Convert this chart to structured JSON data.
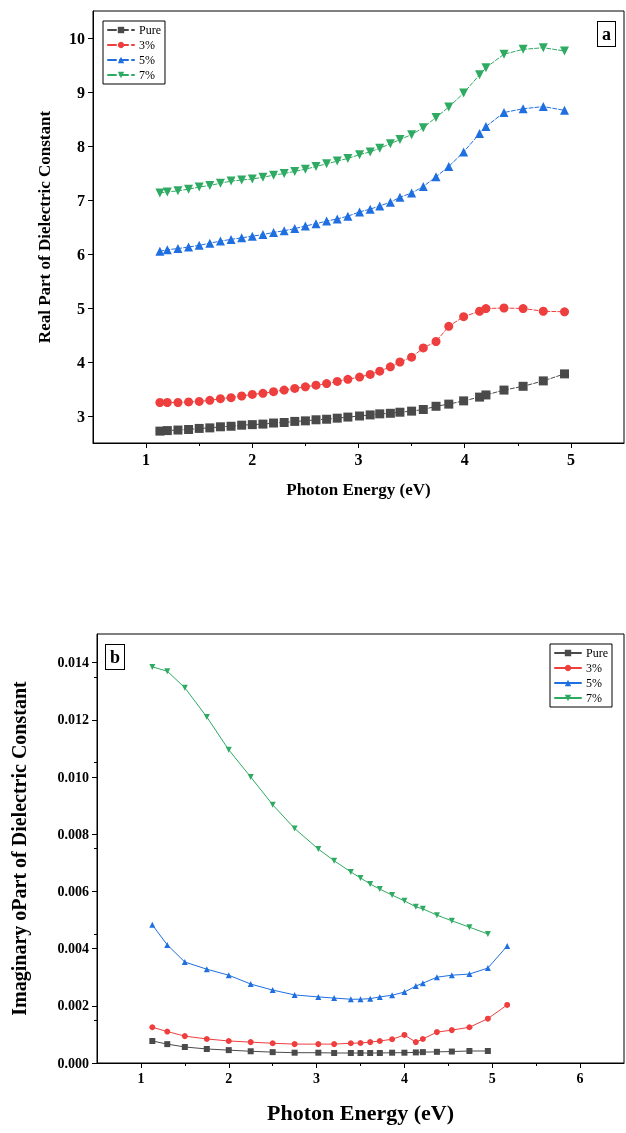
{
  "chart_data": [
    {
      "type": "line",
      "xlabel": "Photon Energy (eV)",
      "ylabel": "Real Part of Dielectric Constant",
      "annotations": [
        "a"
      ],
      "x": [
        1.13,
        1.2,
        1.3,
        1.4,
        1.5,
        1.6,
        1.7,
        1.8,
        1.9,
        2.0,
        2.1,
        2.2,
        2.3,
        2.4,
        2.5,
        2.6,
        2.7,
        2.8,
        2.9,
        3.01,
        3.11,
        3.2,
        3.3,
        3.39,
        3.5,
        3.61,
        3.73,
        3.85,
        3.99,
        4.14,
        4.2,
        4.37,
        4.55,
        4.74,
        4.94
      ],
      "series": [
        {
          "name": "Pure",
          "color": "#4a4a4a",
          "marker": "square",
          "values": [
            2.72,
            2.73,
            2.74,
            2.75,
            2.77,
            2.78,
            2.8,
            2.81,
            2.83,
            2.84,
            2.85,
            2.87,
            2.88,
            2.9,
            2.91,
            2.93,
            2.94,
            2.96,
            2.98,
            3.0,
            3.02,
            3.04,
            3.05,
            3.07,
            3.09,
            3.12,
            3.18,
            3.22,
            3.28,
            3.35,
            3.39,
            3.48,
            3.55,
            3.65,
            3.78
          ]
        },
        {
          "name": "3%",
          "color": "#ee3e3e",
          "marker": "circle",
          "values": [
            3.25,
            3.25,
            3.25,
            3.26,
            3.27,
            3.29,
            3.32,
            3.34,
            3.37,
            3.4,
            3.42,
            3.45,
            3.48,
            3.51,
            3.54,
            3.57,
            3.6,
            3.64,
            3.68,
            3.72,
            3.77,
            3.83,
            3.91,
            4.0,
            4.09,
            4.26,
            4.38,
            4.66,
            4.84,
            4.94,
            4.99,
            5.0,
            4.99,
            4.94,
            4.93
          ]
        },
        {
          "name": "5%",
          "color": "#1f6fe0",
          "marker": "triangle",
          "values": [
            6.05,
            6.08,
            6.1,
            6.13,
            6.16,
            6.2,
            6.24,
            6.27,
            6.3,
            6.33,
            6.36,
            6.4,
            6.43,
            6.47,
            6.52,
            6.56,
            6.61,
            6.65,
            6.7,
            6.78,
            6.83,
            6.89,
            6.96,
            7.05,
            7.13,
            7.25,
            7.43,
            7.62,
            7.89,
            8.23,
            8.36,
            8.62,
            8.69,
            8.73,
            8.66
          ]
        },
        {
          "name": "7%",
          "color": "#2eaa62",
          "marker": "triangle-down",
          "values": [
            7.13,
            7.15,
            7.17,
            7.2,
            7.24,
            7.27,
            7.31,
            7.35,
            7.37,
            7.39,
            7.42,
            7.46,
            7.49,
            7.53,
            7.57,
            7.62,
            7.67,
            7.72,
            7.77,
            7.84,
            7.89,
            7.96,
            8.04,
            8.12,
            8.21,
            8.34,
            8.53,
            8.72,
            8.98,
            9.32,
            9.45,
            9.7,
            9.79,
            9.82,
            9.76
          ]
        }
      ],
      "xlim": [
        0.5,
        5.5
      ],
      "xticks": [
        1,
        2,
        3,
        4,
        5
      ],
      "ylim": [
        2.5,
        10.5
      ],
      "yticks": [
        3,
        4,
        5,
        6,
        7,
        8,
        9,
        10
      ],
      "grid": false,
      "legend": "top left",
      "line_style": "dashed"
    },
    {
      "type": "line",
      "xlabel": "Photon Energy (eV)",
      "ylabel": "Imaginary oPart of Dielectric Constant",
      "annotations": [
        "b"
      ],
      "x": [
        1.13,
        1.3,
        1.5,
        1.75,
        2.0,
        2.25,
        2.5,
        2.75,
        3.02,
        3.2,
        3.39,
        3.5,
        3.61,
        3.72,
        3.86,
        4.0,
        4.13,
        4.21,
        4.37,
        4.54,
        4.74,
        4.95,
        5.17
      ],
      "series": [
        {
          "name": "Pure",
          "color": "#4a4a4a",
          "marker": "square",
          "values": [
            0.00077,
            0.00066,
            0.00056,
            0.00049,
            0.00045,
            0.00041,
            0.00038,
            0.00036,
            0.00036,
            0.00035,
            0.00035,
            0.00035,
            0.00035,
            0.00035,
            0.00036,
            0.00036,
            0.00037,
            0.00038,
            0.00039,
            0.0004,
            0.00042,
            0.00042,
            null
          ]
        },
        {
          "name": "3%",
          "color": "#ee3e3e",
          "marker": "circle",
          "values": [
            0.00125,
            0.0011,
            0.00094,
            0.00084,
            0.00077,
            0.00073,
            0.00069,
            0.00066,
            0.00066,
            0.00066,
            0.00069,
            0.0007,
            0.00073,
            0.00077,
            0.00083,
            0.00098,
            0.00073,
            0.00084,
            0.00108,
            0.00115,
            0.00125,
            0.00155,
            0.00203
          ]
        },
        {
          "name": "5%",
          "color": "#1f6fe0",
          "marker": "triangle",
          "values": [
            0.00483,
            0.00413,
            0.00353,
            0.00328,
            0.00307,
            0.00276,
            0.00255,
            0.00238,
            0.00231,
            0.00227,
            0.00223,
            0.00223,
            0.00225,
            0.00231,
            0.00237,
            0.00248,
            0.00269,
            0.00279,
            0.003,
            0.00307,
            0.00311,
            0.00332,
            0.00409
          ]
        },
        {
          "name": "7%",
          "color": "#2eaa62",
          "marker": "triangle-down",
          "values": [
            0.01385,
            0.0137,
            0.01312,
            0.0121,
            0.01095,
            0.01,
            0.00903,
            0.0082,
            0.00748,
            0.00707,
            0.00668,
            0.00647,
            0.00626,
            0.00608,
            0.00587,
            0.00567,
            0.00546,
            0.00539,
            0.00517,
            0.00497,
            0.00475,
            0.00451,
            null
          ]
        }
      ],
      "xlim": [
        0.5,
        6.5
      ],
      "xticks": [
        1,
        2,
        3,
        4,
        5,
        6
      ],
      "ylim": [
        0,
        0.015
      ],
      "yticks": [
        {
          "value": 0,
          "label": "0.000"
        },
        {
          "value": 0.002,
          "label": "0.002"
        },
        {
          "value": 0.004,
          "label": "0.004"
        },
        {
          "value": 0.006,
          "label": "0.006"
        },
        {
          "value": 0.008,
          "label": "0.008"
        },
        {
          "value": 0.01,
          "label": "0.010"
        },
        {
          "value": 0.012,
          "label": "0.012"
        },
        {
          "value": 0.014,
          "label": "0.014"
        }
      ],
      "grid": false,
      "legend": "top right",
      "line_style": "solid"
    }
  ]
}
